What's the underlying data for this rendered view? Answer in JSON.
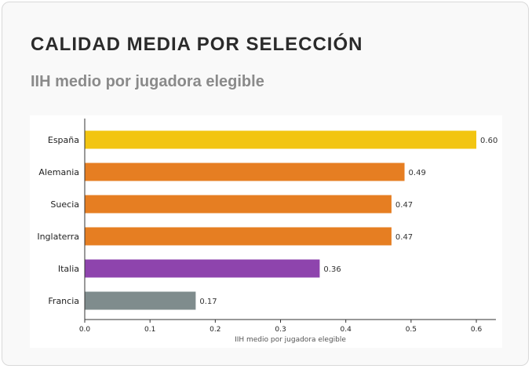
{
  "header": {
    "title": "CALIDAD MEDIA POR SELECCIÓN",
    "subtitle": "IIH medio por jugadora elegible"
  },
  "chart_data": {
    "type": "bar",
    "orientation": "horizontal",
    "categories": [
      "España",
      "Alemania",
      "Suecia",
      "Inglaterra",
      "Italia",
      "Francia"
    ],
    "values": [
      0.6,
      0.49,
      0.47,
      0.47,
      0.36,
      0.17
    ],
    "value_labels": [
      "0.60",
      "0.49",
      "0.47",
      "0.47",
      "0.36",
      "0.17"
    ],
    "colors": [
      "#f2c511",
      "#e67e22",
      "#e67e22",
      "#e67e22",
      "#8e44ad",
      "#7f8c8d"
    ],
    "xlabel": "IIH medio por jugadora elegible",
    "ylabel": "",
    "xlim": [
      0,
      0.63
    ],
    "xticks": [
      0.0,
      0.1,
      0.2,
      0.3,
      0.4,
      0.5,
      0.6
    ],
    "xtick_labels": [
      "0.0",
      "0.1",
      "0.2",
      "0.3",
      "0.4",
      "0.5",
      "0.6"
    ],
    "grid": false
  }
}
